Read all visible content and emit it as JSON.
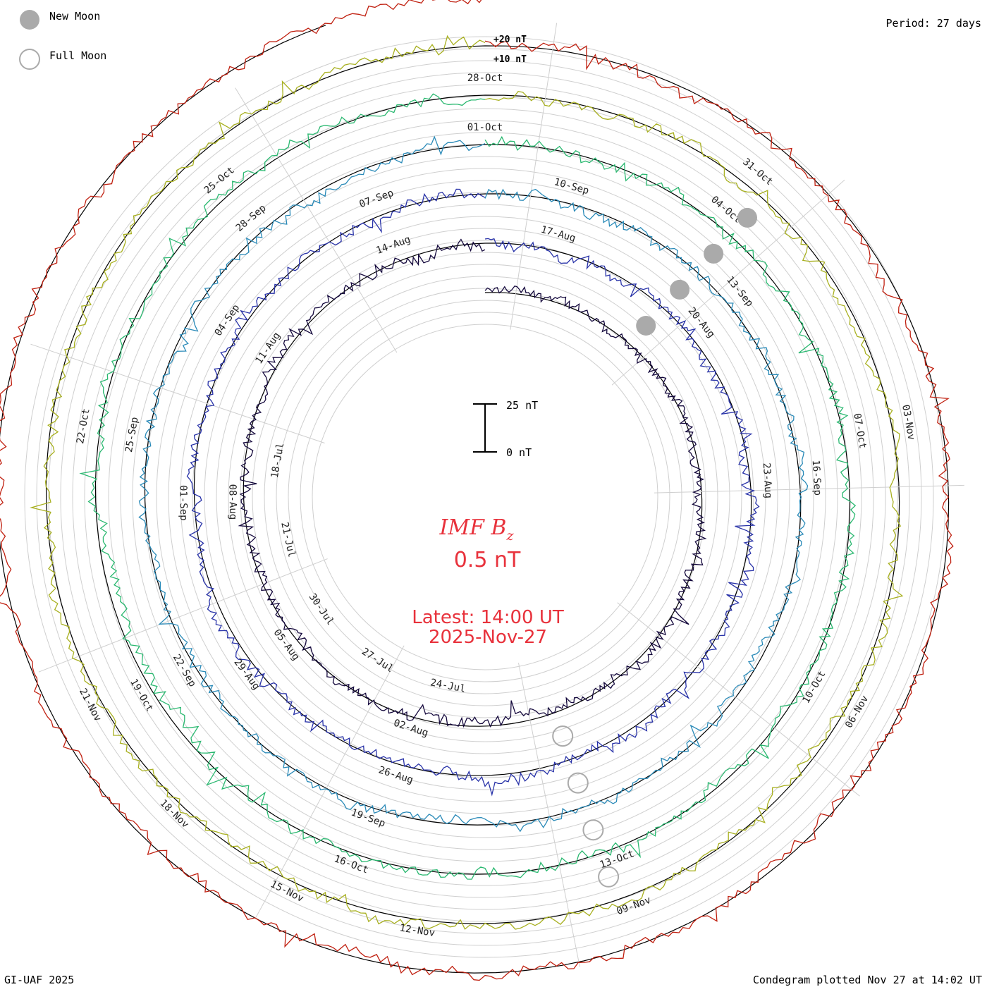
{
  "legend": {
    "new_moon": "New Moon",
    "full_moon": "Full Moon",
    "new_moon_color": "#aaaaaa"
  },
  "period": "Period: 27 days",
  "center": {
    "title_main": "IMF B",
    "title_sub": "z",
    "value": "0.5 nT",
    "latest_line1": "Latest: 14:00 UT",
    "latest_line2": "2025-Nov-27",
    "color": "#e8323c"
  },
  "footer": {
    "left": "GI-UAF 2025",
    "right": "Condegram plotted Nov 27 at 14:02 UT"
  },
  "chart_data": {
    "type": "condegram",
    "title": "IMF Bz",
    "units": "nT",
    "period_days": 27,
    "current_value_nT": 0.5,
    "scale_bar": {
      "top_label": "25 nT",
      "bottom_label": "0 nT",
      "span_nT": 25
    },
    "reference_labels": [
      "+20 nT",
      "+10 nT"
    ],
    "rotations": [
      {
        "name": "rotation-1",
        "color": "#14083c",
        "dates": [
          "24-Jul",
          "27-Jul",
          "30-Jul",
          "21-Jul",
          "18-Jul"
        ]
      },
      {
        "name": "rotation-2",
        "color": "#2832a8",
        "dates": [
          "02-Aug",
          "05-Aug",
          "08-Aug",
          "11-Aug",
          "14-Aug",
          "17-Aug",
          "20-Aug",
          "23-Aug"
        ]
      },
      {
        "name": "rotation-3",
        "color": "#2a8ab8",
        "dates": [
          "26-Aug",
          "29-Aug",
          "01-Sep",
          "04-Sep",
          "07-Sep",
          "10-Sep",
          "13-Sep",
          "16-Sep"
        ]
      },
      {
        "name": "rotation-4",
        "color": "#2ab870",
        "dates": [
          "19-Sep",
          "22-Sep",
          "25-Sep",
          "28-Sep",
          "01-Oct",
          "04-Oct",
          "07-Oct",
          "10-Oct",
          "13-Oct"
        ]
      },
      {
        "name": "rotation-5",
        "color": "#a8b020",
        "dates": [
          "16-Oct",
          "19-Oct",
          "22-Oct",
          "25-Oct",
          "28-Oct",
          "31-Oct",
          "03-Nov",
          "06-Nov",
          "09-Nov"
        ]
      },
      {
        "name": "rotation-6",
        "color": "#c02010",
        "dates": [
          "12-Nov",
          "15-Nov",
          "18-Nov",
          "21-Nov"
        ]
      }
    ],
    "moon_markers": {
      "new_moon_dates": [
        "23-Aug",
        "21-Sep",
        "21-Oct",
        "20-Nov"
      ],
      "full_moon_dates": [
        "09-Aug",
        "07-Sep",
        "07-Oct",
        "05-Nov"
      ]
    }
  }
}
